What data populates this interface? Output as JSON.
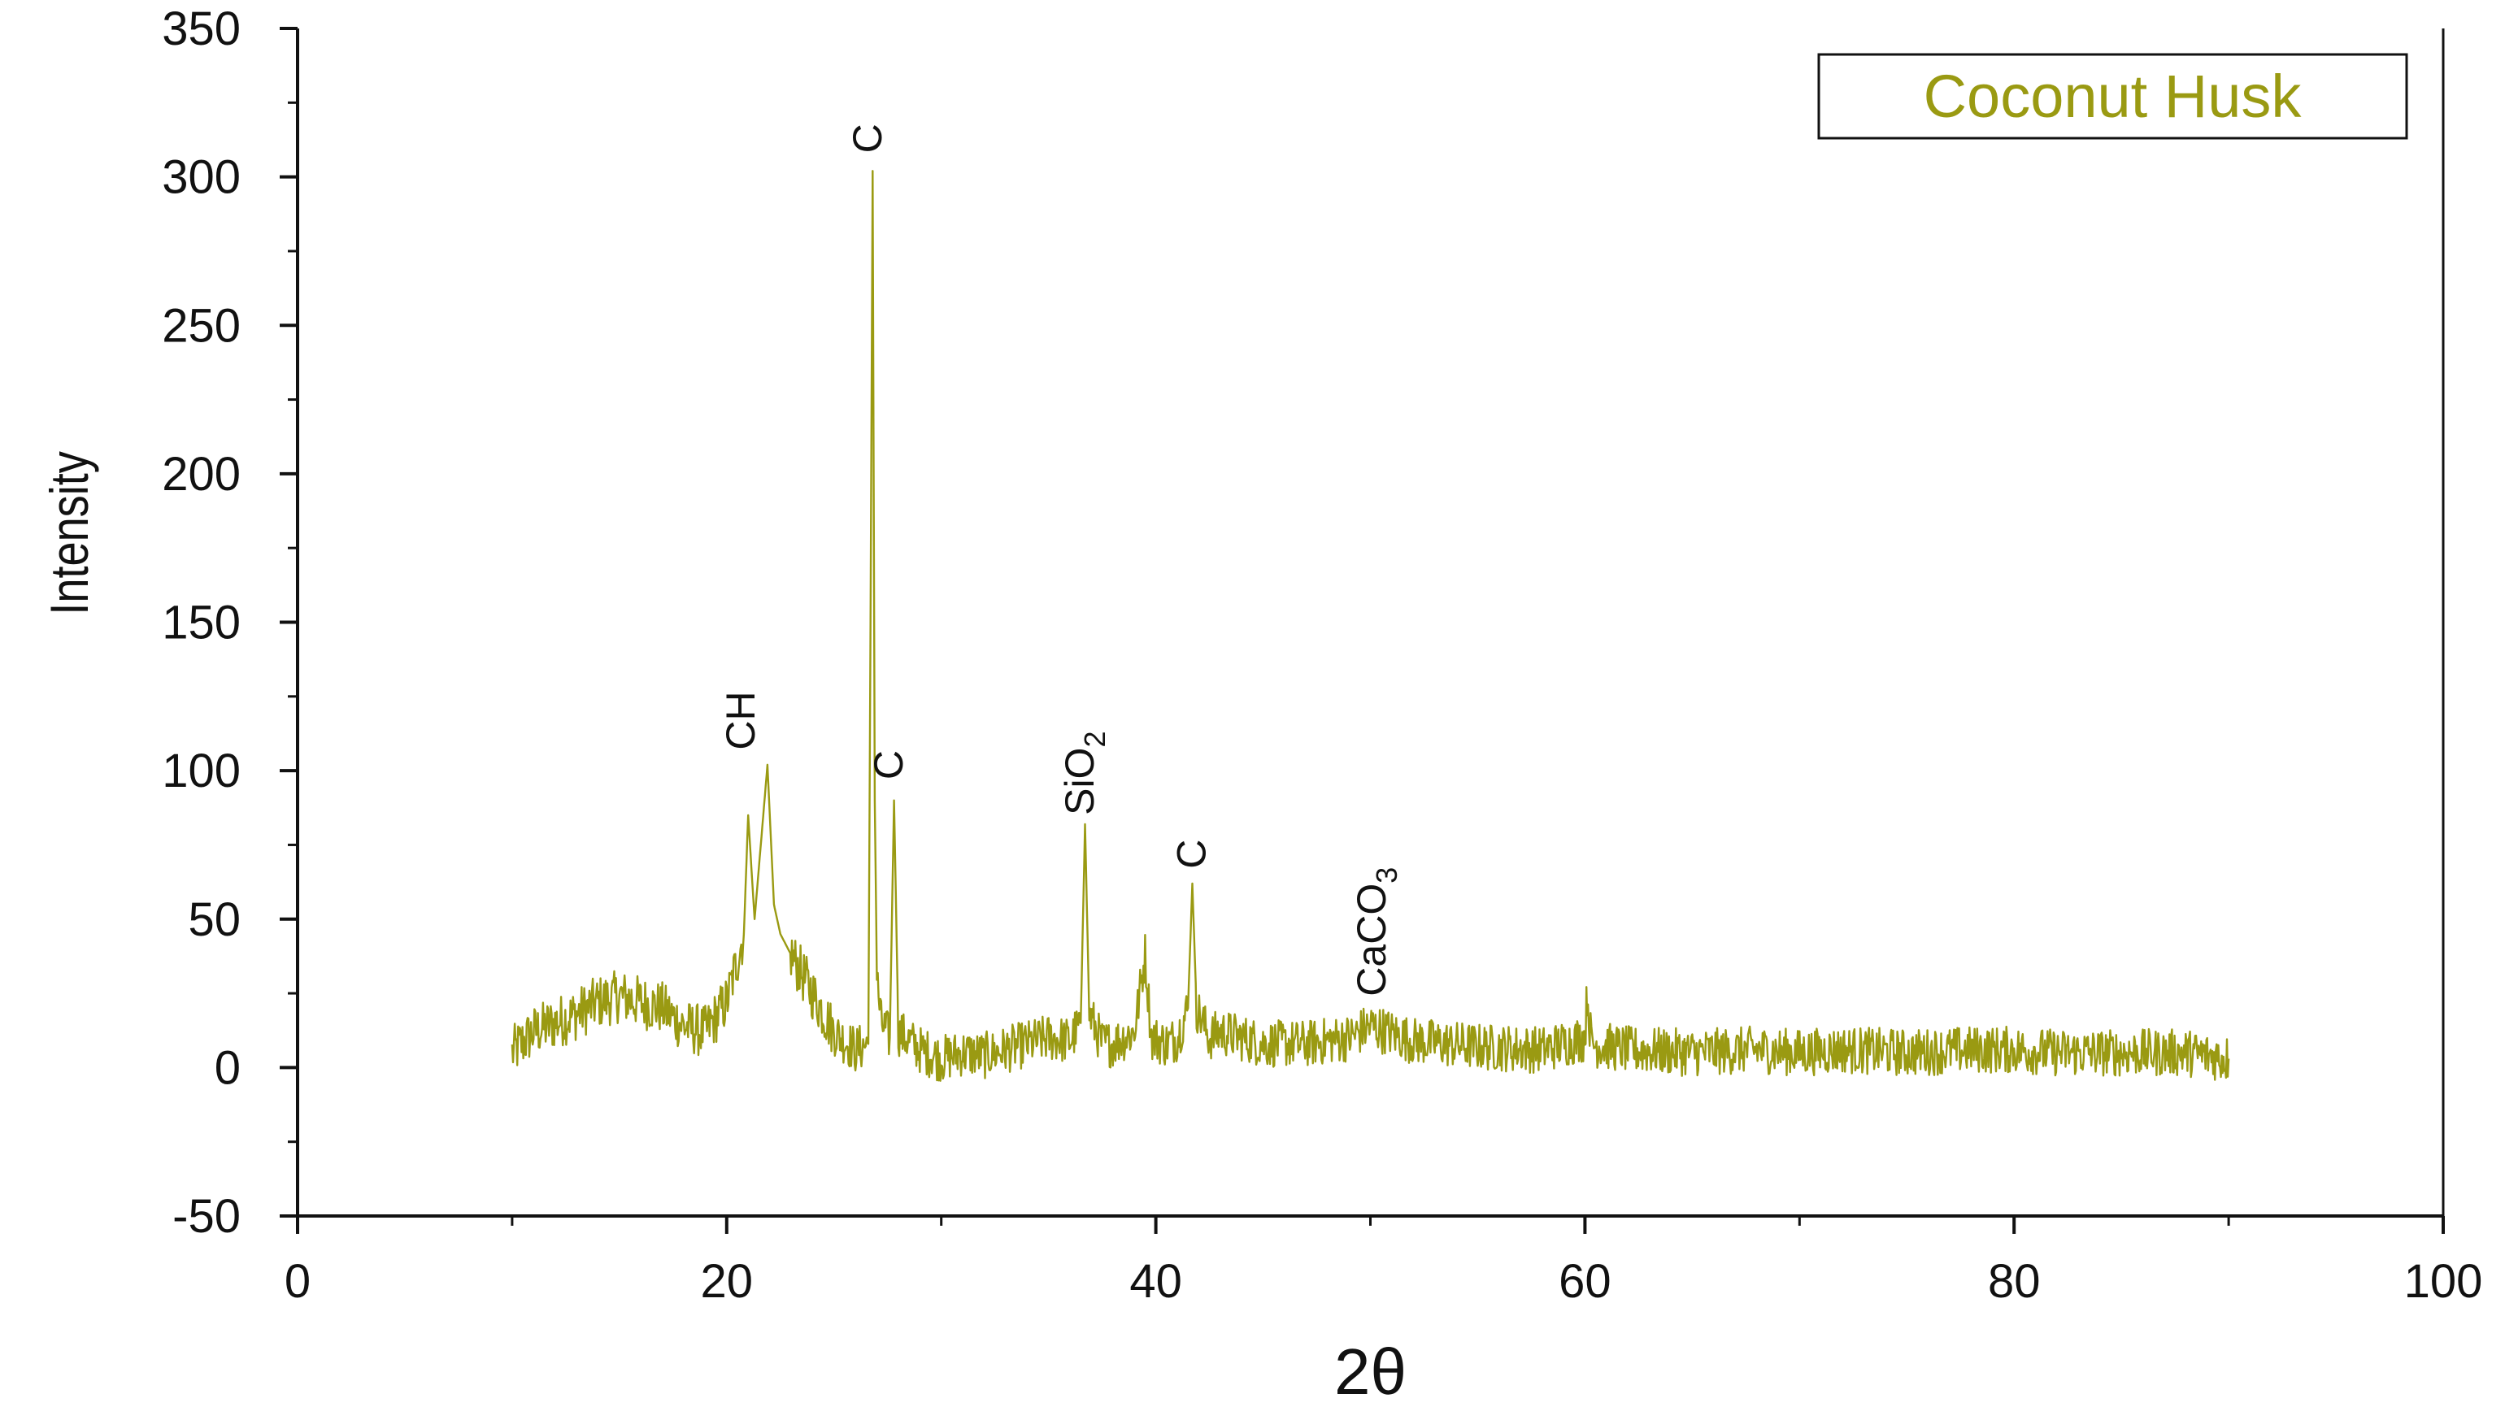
{
  "chart_data": {
    "type": "line",
    "title": "",
    "xlabel": "2θ",
    "ylabel": "Intensity",
    "xlim": [
      0,
      100
    ],
    "ylim": [
      -50,
      350
    ],
    "x_ticks": [
      0,
      20,
      40,
      60,
      80,
      100
    ],
    "y_ticks": [
      -50,
      0,
      50,
      100,
      150,
      200,
      250,
      300,
      350
    ],
    "grid": false,
    "legend_position": "top-right",
    "series": [
      {
        "name": "Coconut Husk",
        "color": "#9a9a12",
        "points": [
          [
            10,
            5
          ],
          [
            11,
            12
          ],
          [
            12,
            15
          ],
          [
            13,
            18
          ],
          [
            14,
            22
          ],
          [
            15,
            24
          ],
          [
            16,
            22
          ],
          [
            17,
            20
          ],
          [
            18,
            14
          ],
          [
            19,
            12
          ],
          [
            20,
            22
          ],
          [
            20.8,
            45
          ],
          [
            21.0,
            85
          ],
          [
            21.3,
            50
          ],
          [
            21.9,
            102
          ],
          [
            22.2,
            55
          ],
          [
            22.5,
            45
          ],
          [
            23,
            38
          ],
          [
            24,
            25
          ],
          [
            25,
            12
          ],
          [
            26,
            6
          ],
          [
            26.6,
            8
          ],
          [
            26.7,
            145
          ],
          [
            26.8,
            302
          ],
          [
            26.9,
            90
          ],
          [
            27.0,
            30
          ],
          [
            27.2,
            15
          ],
          [
            27.6,
            10
          ],
          [
            27.8,
            90
          ],
          [
            28.0,
            12
          ],
          [
            29,
            6
          ],
          [
            30,
            3
          ],
          [
            31,
            5
          ],
          [
            32,
            4
          ],
          [
            33,
            6
          ],
          [
            34,
            8
          ],
          [
            35,
            10
          ],
          [
            36,
            9
          ],
          [
            36.5,
            15
          ],
          [
            36.7,
            82
          ],
          [
            36.9,
            18
          ],
          [
            37.5,
            8
          ],
          [
            38,
            8
          ],
          [
            39,
            12
          ],
          [
            39.5,
            38
          ],
          [
            39.8,
            10
          ],
          [
            40.5,
            8
          ],
          [
            41,
            10
          ],
          [
            41.5,
            20
          ],
          [
            41.7,
            62
          ],
          [
            41.9,
            20
          ],
          [
            42.5,
            10
          ],
          [
            43,
            12
          ],
          [
            45,
            8
          ],
          [
            47,
            8
          ],
          [
            49,
            10
          ],
          [
            50,
            14
          ],
          [
            52,
            9
          ],
          [
            55,
            7
          ],
          [
            58,
            6
          ],
          [
            60,
            10
          ],
          [
            60.1,
            25
          ],
          [
            60.3,
            8
          ],
          [
            62,
            6
          ],
          [
            65,
            5
          ],
          [
            68,
            6
          ],
          [
            70,
            5
          ],
          [
            72,
            6
          ],
          [
            75,
            5
          ],
          [
            78,
            6
          ],
          [
            80,
            6
          ],
          [
            82,
            5
          ],
          [
            85,
            5
          ],
          [
            88,
            5
          ],
          [
            90,
            3
          ]
        ]
      }
    ],
    "annotations": [
      {
        "text": "C",
        "x": 27.2,
        "y": 308
      },
      {
        "text": "CH",
        "x": 21.3,
        "y": 107
      },
      {
        "text": "C",
        "x": 28.2,
        "y": 97
      },
      {
        "text": "SiO",
        "sub": "2",
        "x": 37.1,
        "y": 85
      },
      {
        "text": "C",
        "x": 42.3,
        "y": 67
      },
      {
        "text": "CaCO",
        "sub": "3",
        "x": 50.7,
        "y": 24
      }
    ]
  }
}
